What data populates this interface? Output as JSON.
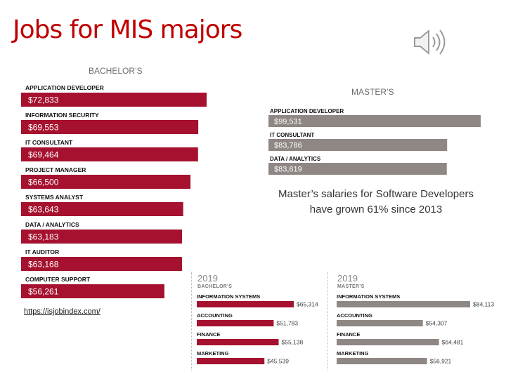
{
  "slide": {
    "title": "Jobs for MIS majors",
    "source_link": "https://isjobindex.com/"
  },
  "note": {
    "line1": "Master’s salaries for Software Developers",
    "line2": "have grown 61% since 2013"
  },
  "colors": {
    "bachelor": "#a5112e",
    "master": "#8f8784",
    "title": "#c00000"
  },
  "chart_data": [
    {
      "type": "bar",
      "orientation": "horizontal",
      "title": "BACHELOR’S",
      "categories": [
        "APPLICATION DEVELOPER",
        "INFORMATION SECURITY",
        "IT CONSULTANT",
        "PROJECT MANAGER",
        "SYSTEMS ANALYST",
        "DATA / ANALYTICS",
        "IT AUDITOR",
        "COMPUTER SUPPORT"
      ],
      "values": [
        72833,
        69553,
        69464,
        66500,
        63643,
        63183,
        63168,
        56261
      ],
      "labels": [
        "$72,833",
        "$69,553",
        "$69,464",
        "$66,500",
        "$63,643",
        "$63,183",
        "$63,168",
        "$56,261"
      ],
      "label_position": "inside",
      "color": "#a5112e"
    },
    {
      "type": "bar",
      "orientation": "horizontal",
      "title": "MASTER’S",
      "categories": [
        "APPLICATION DEVELOPER",
        "IT CONSULTANT",
        "DATA / ANALYTICS"
      ],
      "values": [
        99531,
        83786,
        83619
      ],
      "labels": [
        "$99,531",
        "$83,786",
        "$83,619"
      ],
      "label_position": "inside",
      "color": "#8f8784"
    },
    {
      "type": "bar",
      "orientation": "horizontal",
      "year": "2019",
      "title": "BACHELOR’S",
      "categories": [
        "INFORMATION SYSTEMS",
        "ACCOUNTING",
        "FINANCE",
        "MARKETING"
      ],
      "values": [
        65314,
        51783,
        55138,
        45539
      ],
      "labels": [
        "$65,314",
        "$51,783",
        "$55,138",
        "$45,539"
      ],
      "label_position": "outside",
      "color": "#a5112e"
    },
    {
      "type": "bar",
      "orientation": "horizontal",
      "year": "2019",
      "title": "MASTER’S",
      "categories": [
        "INFORMATION SYSTEMS",
        "ACCOUNTING",
        "FINANCE",
        "MARKETING"
      ],
      "values": [
        84113,
        54307,
        64481,
        56921
      ],
      "labels": [
        "$84,113",
        "$54,307",
        "$64,481",
        "$56,921"
      ],
      "label_position": "outside",
      "color": "#8f8784"
    }
  ]
}
